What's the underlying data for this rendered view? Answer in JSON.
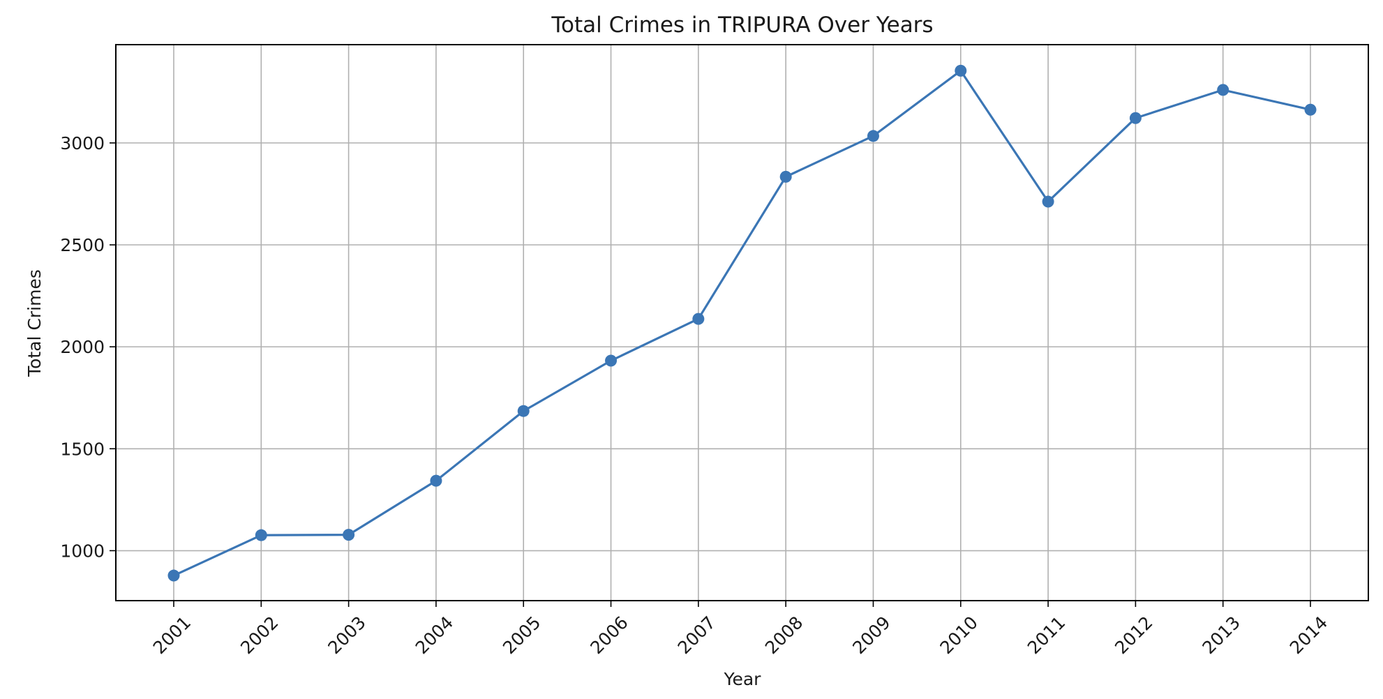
{
  "chart_data": {
    "type": "line",
    "title": "Total Crimes in TRIPURA Over Years",
    "xlabel": "Year",
    "ylabel": "Total Crimes",
    "x": [
      "2001",
      "2002",
      "2003",
      "2004",
      "2005",
      "2006",
      "2007",
      "2008",
      "2009",
      "2010",
      "2011",
      "2012",
      "2013",
      "2014"
    ],
    "series": [
      {
        "values": [
          878,
          1076,
          1078,
          1343,
          1685,
          1932,
          2137,
          2834,
          3034,
          3354,
          2712,
          3122,
          3260,
          3163
        ]
      }
    ],
    "ylim": [
      755,
      3482
    ],
    "yticks": [
      1000,
      1500,
      2000,
      2500,
      3000
    ],
    "grid": true,
    "line_color": "#3b76b5",
    "marker": "circle"
  }
}
